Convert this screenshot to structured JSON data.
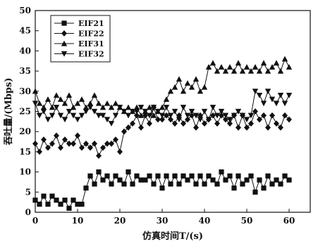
{
  "chart_data": {
    "type": "line",
    "title": "",
    "xlabel": "仿真时间T/(s)",
    "ylabel": "吞吐量/(Mbps)",
    "xlim": [
      0,
      65
    ],
    "ylim": [
      0,
      50
    ],
    "xticks": [
      0,
      10,
      20,
      30,
      40,
      50,
      60
    ],
    "yticks": [
      0,
      5,
      10,
      15,
      20,
      25,
      30,
      35,
      40,
      45,
      50
    ],
    "grid": false,
    "legend_position": "top-left",
    "series": [
      {
        "name": "EIF21",
        "marker": "square",
        "x": [
          0,
          1,
          2,
          3,
          4,
          5,
          6,
          7,
          8,
          9,
          10,
          11,
          12,
          13,
          14,
          15,
          16,
          17,
          18,
          19,
          20,
          21,
          22,
          23,
          24,
          25,
          26,
          27,
          28,
          29,
          30,
          31,
          32,
          33,
          34,
          35,
          36,
          37,
          38,
          39,
          40,
          41,
          42,
          43,
          44,
          45,
          46,
          47,
          48,
          49,
          50,
          51,
          52,
          53,
          54,
          55,
          56,
          57,
          58,
          59,
          60
        ],
        "y": [
          3,
          2,
          4,
          2,
          4,
          3,
          2,
          3,
          1,
          3,
          2,
          2,
          6,
          9,
          7,
          10,
          8,
          9,
          7,
          9,
          8,
          7,
          10,
          7,
          9,
          8,
          8,
          9,
          7,
          9,
          6,
          9,
          7,
          9,
          7,
          9,
          8,
          9,
          7,
          9,
          7,
          9,
          8,
          7,
          10,
          8,
          9,
          6,
          9,
          7,
          8,
          9,
          5,
          8,
          6,
          9,
          7,
          8,
          7,
          9,
          8
        ]
      },
      {
        "name": "EIF22",
        "marker": "diamond",
        "x": [
          0,
          1,
          2,
          3,
          4,
          5,
          6,
          7,
          8,
          9,
          10,
          11,
          12,
          13,
          14,
          15,
          16,
          17,
          18,
          19,
          20,
          21,
          22,
          23,
          24,
          25,
          26,
          27,
          28,
          29,
          30,
          31,
          32,
          33,
          34,
          35,
          36,
          37,
          38,
          39,
          40,
          41,
          42,
          43,
          44,
          45,
          46,
          47,
          48,
          49,
          50,
          51,
          52,
          53,
          54,
          55,
          56,
          57,
          58,
          59,
          60
        ],
        "y": [
          17,
          15,
          18,
          16,
          17,
          19,
          16,
          18,
          17,
          17,
          19,
          16,
          17,
          16,
          17,
          14,
          16,
          17,
          17,
          18,
          15,
          20,
          21,
          22,
          24,
          21,
          24,
          22,
          26,
          23,
          23,
          24,
          23,
          22,
          24,
          22,
          23,
          24,
          21,
          24,
          22,
          23,
          24,
          22,
          24,
          23,
          22,
          24,
          21,
          24,
          21,
          22,
          25,
          23,
          24,
          21,
          24,
          22,
          21,
          24,
          23
        ]
      },
      {
        "name": "EIF31",
        "marker": "triangle-up",
        "x": [
          0,
          1,
          2,
          3,
          4,
          5,
          6,
          7,
          8,
          9,
          10,
          11,
          12,
          13,
          14,
          15,
          16,
          17,
          18,
          19,
          20,
          21,
          22,
          23,
          24,
          25,
          26,
          27,
          28,
          29,
          30,
          31,
          32,
          33,
          34,
          35,
          36,
          37,
          38,
          39,
          40,
          41,
          42,
          43,
          44,
          45,
          46,
          47,
          48,
          49,
          50,
          51,
          52,
          53,
          54,
          55,
          56,
          57,
          58,
          59,
          60
        ],
        "y": [
          30,
          27,
          26,
          28,
          26,
          29,
          28,
          27,
          29,
          26,
          27,
          28,
          26,
          27,
          29,
          27,
          26,
          27,
          26,
          27,
          26,
          25,
          26,
          25,
          26,
          24,
          25,
          26,
          24,
          25,
          26,
          28,
          30,
          31,
          33,
          30,
          32,
          31,
          33,
          30,
          31,
          36,
          37,
          35,
          36,
          35,
          36,
          35,
          37,
          35,
          36,
          35,
          36,
          35,
          37,
          35,
          36,
          37,
          35,
          38,
          36
        ]
      },
      {
        "name": "EIF32",
        "marker": "triangle-down",
        "x": [
          0,
          1,
          2,
          3,
          4,
          5,
          6,
          7,
          8,
          9,
          10,
          11,
          12,
          13,
          14,
          15,
          16,
          17,
          18,
          19,
          20,
          21,
          22,
          23,
          24,
          25,
          26,
          27,
          28,
          29,
          30,
          31,
          32,
          33,
          34,
          35,
          36,
          37,
          38,
          39,
          40,
          41,
          42,
          43,
          44,
          45,
          46,
          47,
          48,
          49,
          50,
          51,
          52,
          53,
          54,
          55,
          56,
          57,
          58,
          59,
          60
        ],
        "y": [
          27,
          24,
          25,
          23,
          24,
          26,
          24,
          23,
          25,
          24,
          23,
          24,
          25,
          26,
          25,
          24,
          24,
          23,
          22,
          24,
          26,
          25,
          24,
          25,
          25,
          26,
          25,
          24,
          26,
          25,
          24,
          26,
          24,
          25,
          23,
          26,
          24,
          25,
          24,
          23,
          25,
          23,
          26,
          24,
          25,
          24,
          23,
          24,
          25,
          24,
          23,
          24,
          30,
          29,
          27,
          30,
          28,
          27,
          29,
          27,
          29
        ]
      }
    ]
  }
}
